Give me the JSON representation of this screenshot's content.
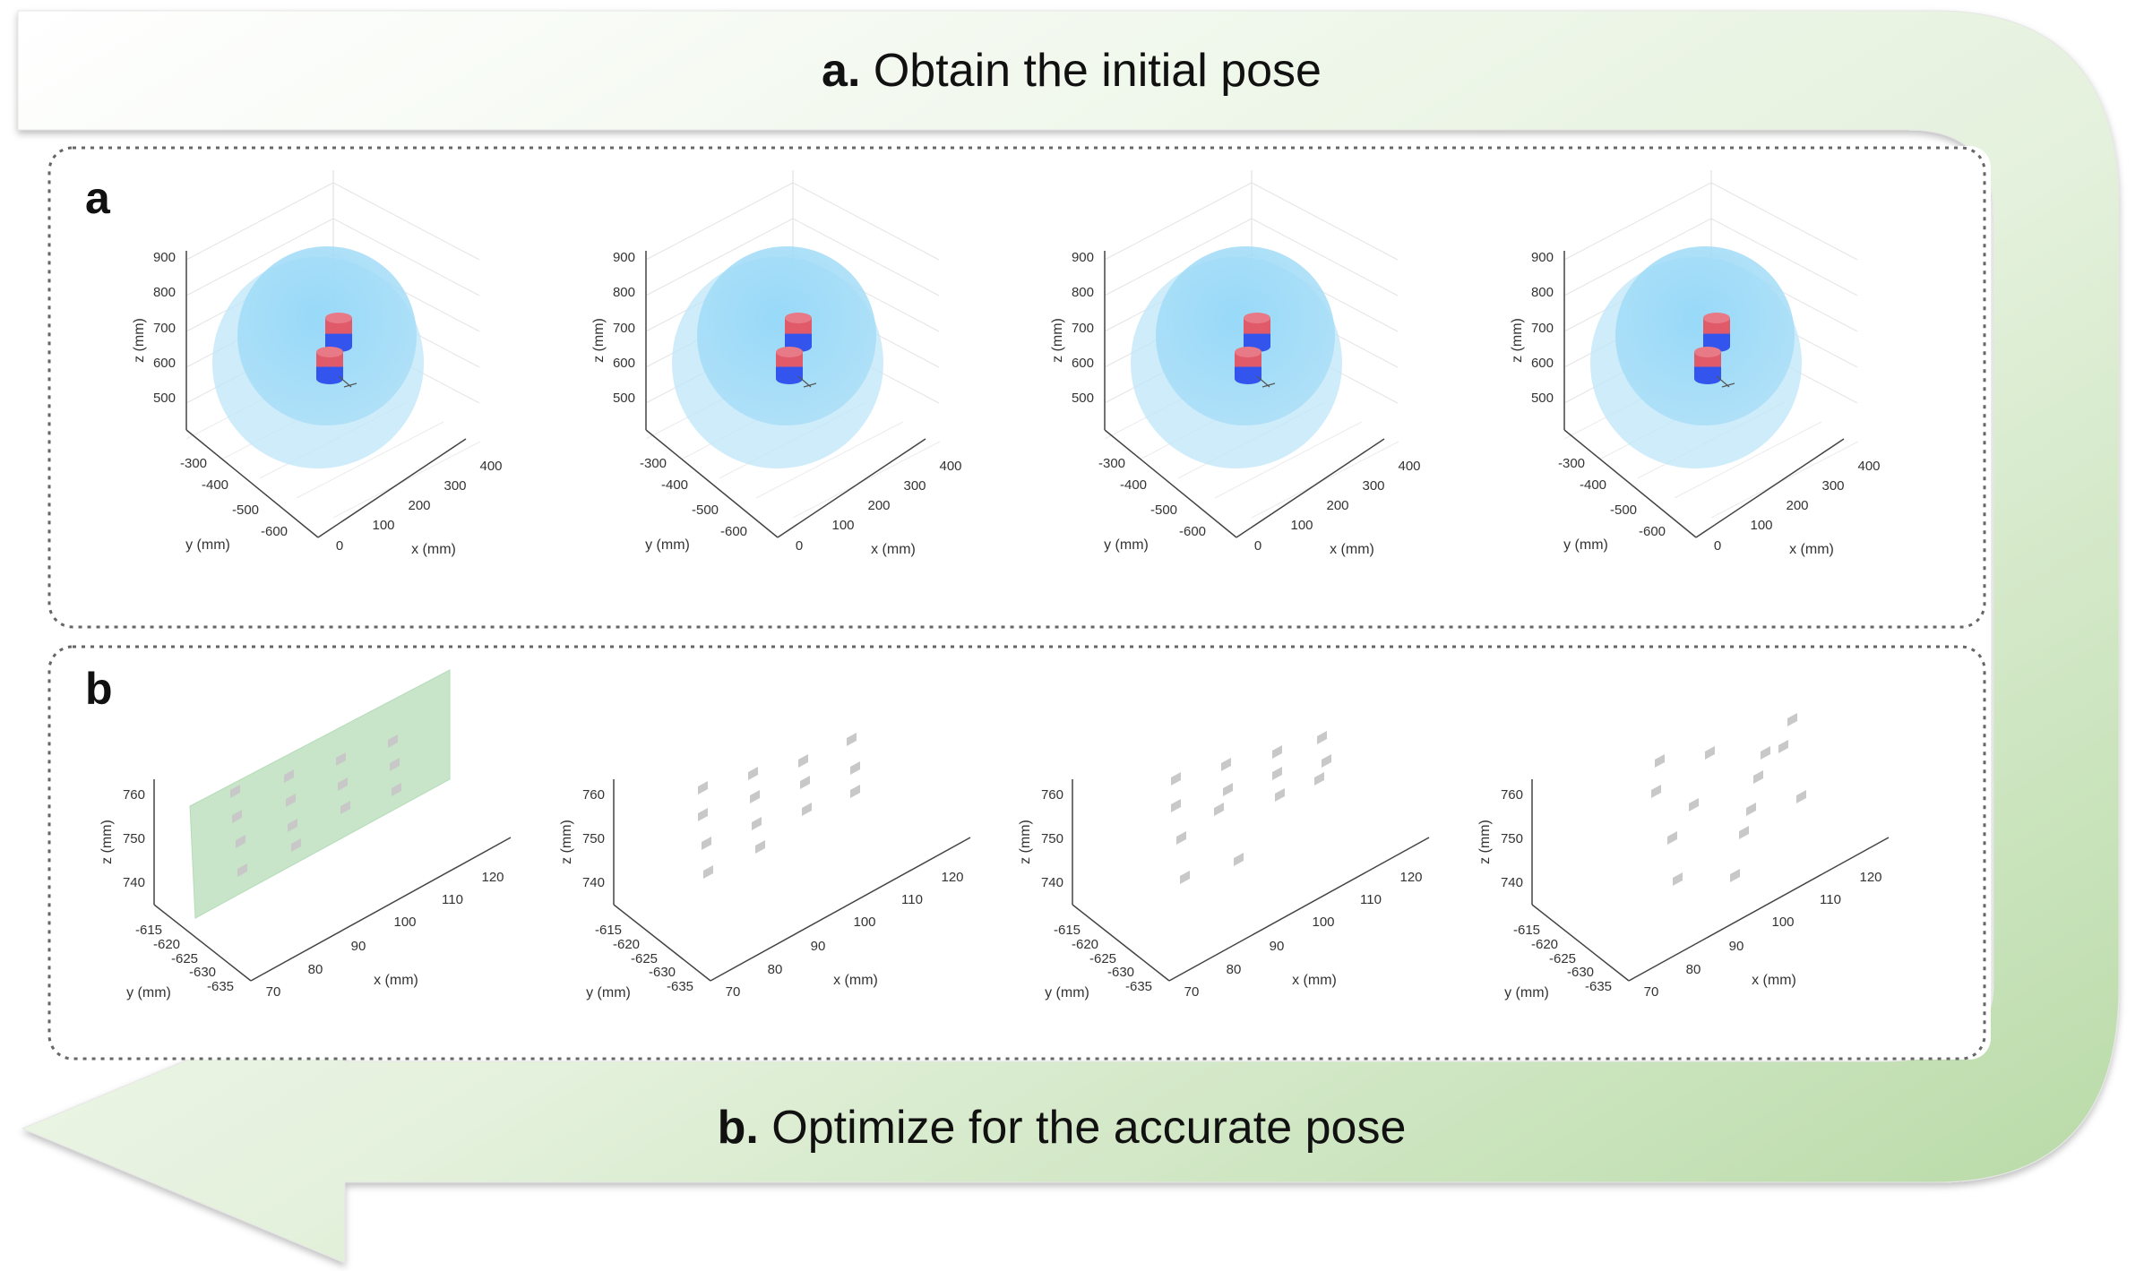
{
  "header": {
    "letter": "a.",
    "text": "Obtain the initial pose"
  },
  "footer": {
    "letter": "b.",
    "text": "Optimize for the accurate pose"
  },
  "panel_a": {
    "label": "a",
    "axes": {
      "xlabel": "x (mm)",
      "ylabel": "y (mm)",
      "zlabel": "z (mm)",
      "xticks": [
        "0",
        "100",
        "200",
        "300",
        "400"
      ],
      "yticks": [
        "-300",
        "-400",
        "-500",
        "-600"
      ],
      "zticks": [
        "900",
        "800",
        "700",
        "600",
        "500"
      ]
    }
  },
  "panel_b": {
    "label": "b",
    "axes": {
      "xlabel": "x (mm)",
      "ylabel": "y (mm)",
      "zlabel": "z (mm)",
      "xticks": [
        "70",
        "80",
        "90",
        "100",
        "110",
        "120"
      ],
      "yticks": [
        "-615",
        "-620",
        "-625",
        "-630",
        "-635"
      ],
      "zticks": [
        "760",
        "750",
        "740"
      ]
    }
  },
  "colors": {
    "arrow_green": "#cfe6c2",
    "sphere_blue": "#7fd0f5",
    "cylinder_red": "#e05a6a",
    "cylinder_blue": "#3355ee",
    "plane_green": "#bfe0c0",
    "point_gray": "#c8c8c8"
  }
}
